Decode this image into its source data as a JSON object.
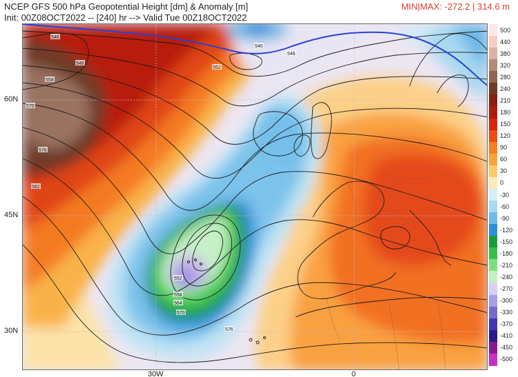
{
  "header": {
    "title_line1": "NCEP GFS 500 hPa Geopotential Height [dm] & Anomaly [m]",
    "title_line2": "Init: 00Z08OCT2022 -- [240] hr --> Valid Tue 00Z18OCT2022",
    "minmax": "MIN|MAX: -272.2 | 314.6 m"
  },
  "axes": {
    "lat_labels": [
      "60N",
      "45N",
      "30N"
    ],
    "lon_labels": [
      "30W",
      "0"
    ]
  },
  "contour_labels": [
    "546",
    "546",
    "540",
    "546",
    "552",
    "558",
    "570",
    "576",
    "582",
    "552",
    "558",
    "564",
    "570",
    "576"
  ],
  "colorbar": {
    "labels": [
      "500",
      "440",
      "380",
      "320",
      "280",
      "240",
      "210",
      "180",
      "150",
      "120",
      "90",
      "60",
      "30",
      "0",
      "-30",
      "-60",
      "-90",
      "-120",
      "-150",
      "-180",
      "-210",
      "-240",
      "-270",
      "-300",
      "-330",
      "-370",
      "-410",
      "-450",
      "-500"
    ],
    "colors": [
      "#fde6e6",
      "#f6cfc4",
      "#dcb1a3",
      "#b38a76",
      "#8f6553",
      "#6e3a25",
      "#8a1f0e",
      "#b01c0c",
      "#d8260d",
      "#ee4d14",
      "#f77e22",
      "#fba33a",
      "#fcc96a",
      "#fde9b8",
      "#d6eef8",
      "#a8dbf2",
      "#6cbce9",
      "#2d8fdd",
      "#1a9c3a",
      "#34c24a",
      "#7de07f",
      "#c2efc4",
      "#d9cff2",
      "#a99de4",
      "#7569cf",
      "#3f36b5",
      "#2a1b8f",
      "#8a1a8c",
      "#c82fc2"
    ]
  }
}
